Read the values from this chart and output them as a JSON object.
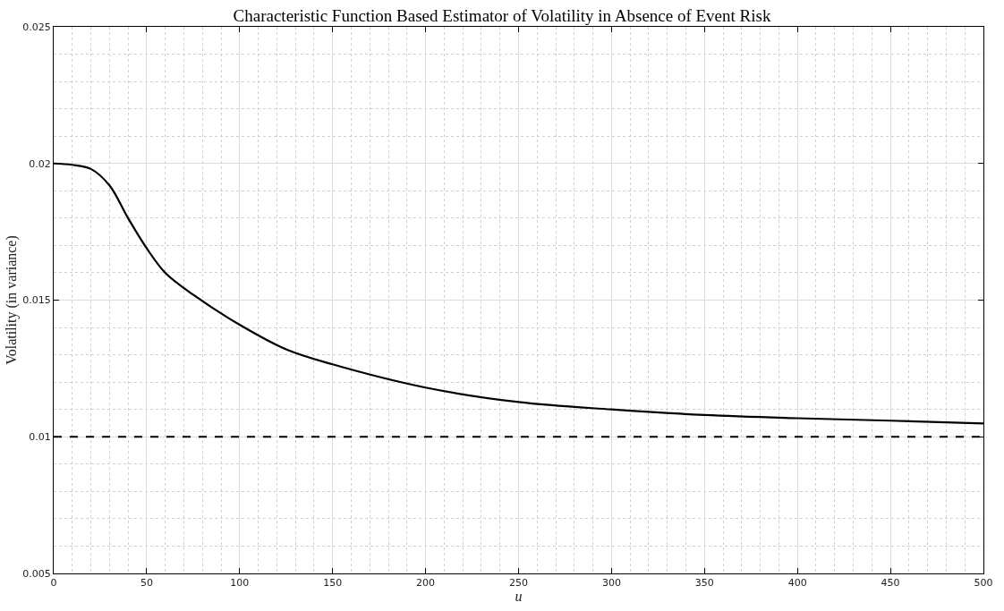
{
  "chart_data": {
    "type": "line",
    "title": "Characteristic Function Based Estimator of Volatility in Absence of Event Risk",
    "xlabel": "u",
    "ylabel": "Volatility (in variance)",
    "x": [
      0,
      10,
      20,
      30,
      40,
      50,
      60,
      75,
      100,
      125,
      150,
      200,
      250,
      300,
      350,
      400,
      450,
      500
    ],
    "series": [
      {
        "color": "#000000",
        "values": [
          0.02,
          0.01995,
          0.0198,
          0.0192,
          0.018,
          0.0169,
          0.016,
          0.0152,
          0.0141,
          0.0132,
          0.01265,
          0.0118,
          0.01127,
          0.011,
          0.0108,
          0.01068,
          0.01059,
          0.01049
        ]
      }
    ],
    "ref_lines": [
      {
        "axis": "y",
        "value": 0.01,
        "color": "#000000",
        "line_style": "dashed"
      }
    ],
    "xlim": [
      0,
      500
    ],
    "xticks": [
      0,
      50,
      100,
      150,
      200,
      250,
      300,
      350,
      400,
      450,
      500
    ],
    "ylim": [
      0.005,
      0.025
    ],
    "yticks": [
      0.005,
      0.01,
      0.015,
      0.02,
      0.025
    ],
    "grid": true,
    "marker": "none",
    "line_style": "solid"
  }
}
